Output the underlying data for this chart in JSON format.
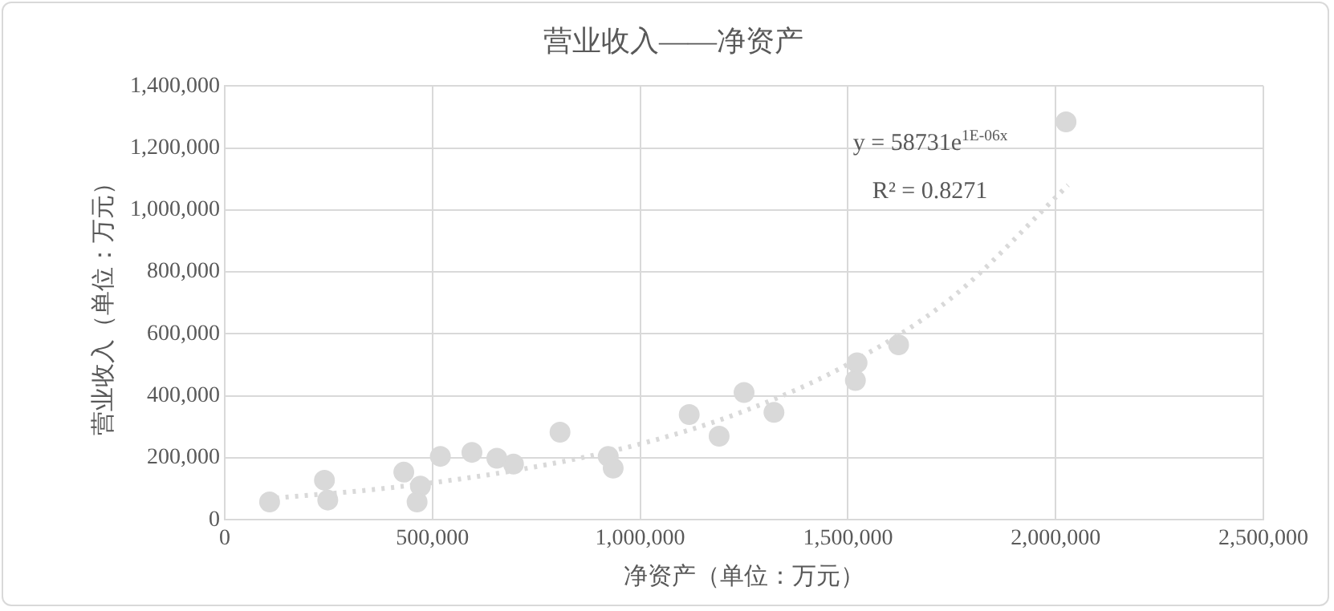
{
  "chart_data": {
    "type": "scatter",
    "title": "营业收入——净资产",
    "xlabel": "净资产（单位：万元）",
    "ylabel": "营业收入（单位：万元）",
    "series": [
      {
        "type": "scatter",
        "color": "#d9d9d9",
        "marker": "circle",
        "x": [
          108000,
          240000,
          248000,
          431000,
          471000,
          463000,
          519000,
          595000,
          655000,
          695000,
          807000,
          923000,
          935000,
          1118000,
          1190000,
          1250000,
          1322000,
          1522000,
          1518000,
          1622000,
          2025000
        ],
        "values": [
          58000,
          128000,
          64000,
          154000,
          109000,
          58000,
          205000,
          218000,
          199000,
          180000,
          283000,
          205000,
          167000,
          340000,
          270000,
          411000,
          347000,
          507000,
          450000,
          565000,
          1284000
        ]
      },
      {
        "type": "line",
        "color": "#d9d9d9",
        "marker": "none",
        "line_style": "dotted",
        "x": [
          100000,
          400000,
          700000,
          1000000,
          1250000,
          1500000,
          1750000,
          2030000
        ],
        "values": [
          68000,
          104000,
          160000,
          245000,
          351000,
          502000,
          717000,
          1080000
        ]
      }
    ],
    "annotations": [
      "y = 58731e$^{1E-06x}$",
      "R² = 0.8271"
    ],
    "xlim": [
      0,
      2500000
    ],
    "xticks": [
      0,
      {
        "value": 500000,
        "label": "500,000"
      },
      {
        "value": 1000000,
        "label": "1,000,000"
      },
      {
        "value": 1500000,
        "label": "1,500,000"
      },
      {
        "value": 2000000,
        "label": "2,000,000"
      },
      {
        "value": 2500000,
        "label": "2,500,000"
      }
    ],
    "ylim": [
      0,
      1400000
    ],
    "yticks": [
      0,
      {
        "value": 200000,
        "label": "200,000"
      },
      {
        "value": 400000,
        "label": "400,000"
      },
      {
        "value": 600000,
        "label": "600,000"
      },
      {
        "value": 800000,
        "label": "800,000"
      },
      {
        "value": 1000000,
        "label": "1,000,000"
      },
      {
        "value": 1200000,
        "label": "1,200,000"
      },
      {
        "value": 1400000,
        "label": "1,400,000"
      }
    ],
    "grid": true,
    "legend": false
  }
}
